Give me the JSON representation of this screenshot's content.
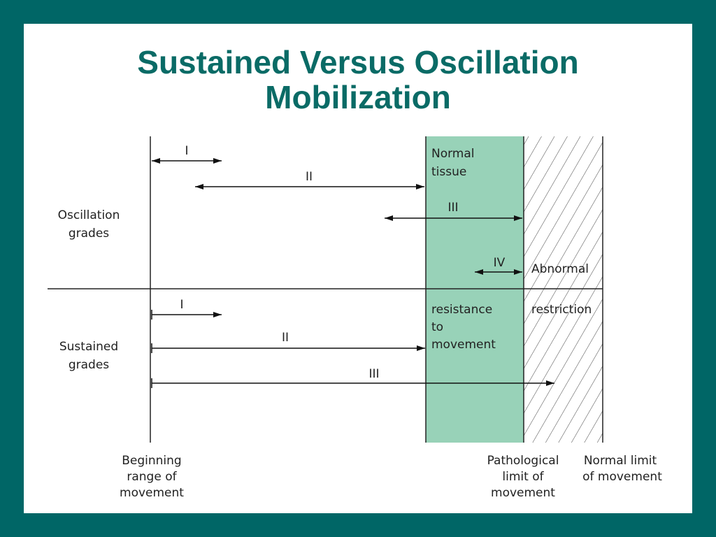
{
  "title_line1": "Sustained Versus Oscillation",
  "title_line2": "Mobilization",
  "colors": {
    "background": "#006666",
    "title": "#0a6b66",
    "normal_tissue_band": "#98d2b8"
  },
  "labels": {
    "oscillation_1": "Oscillation",
    "oscillation_2": "grades",
    "sustained_1": "Sustained",
    "sustained_2": "grades",
    "normal_1": "Normal",
    "normal_2": "tissue",
    "resistance_1": "resistance",
    "resistance_2": "to",
    "resistance_3": "movement",
    "abnormal": "Abnormal",
    "restriction": "restriction",
    "begin_1": "Beginning",
    "begin_2": "range of",
    "begin_3": "movement",
    "patho_1": "Pathological",
    "patho_2": "limit of",
    "patho_3": "movement",
    "normal_limit_1": "Normal limit",
    "normal_limit_2": "of movement"
  },
  "oscillation_grades": [
    "I",
    "II",
    "III",
    "IV"
  ],
  "sustained_grades": [
    "I",
    "II",
    "III"
  ]
}
